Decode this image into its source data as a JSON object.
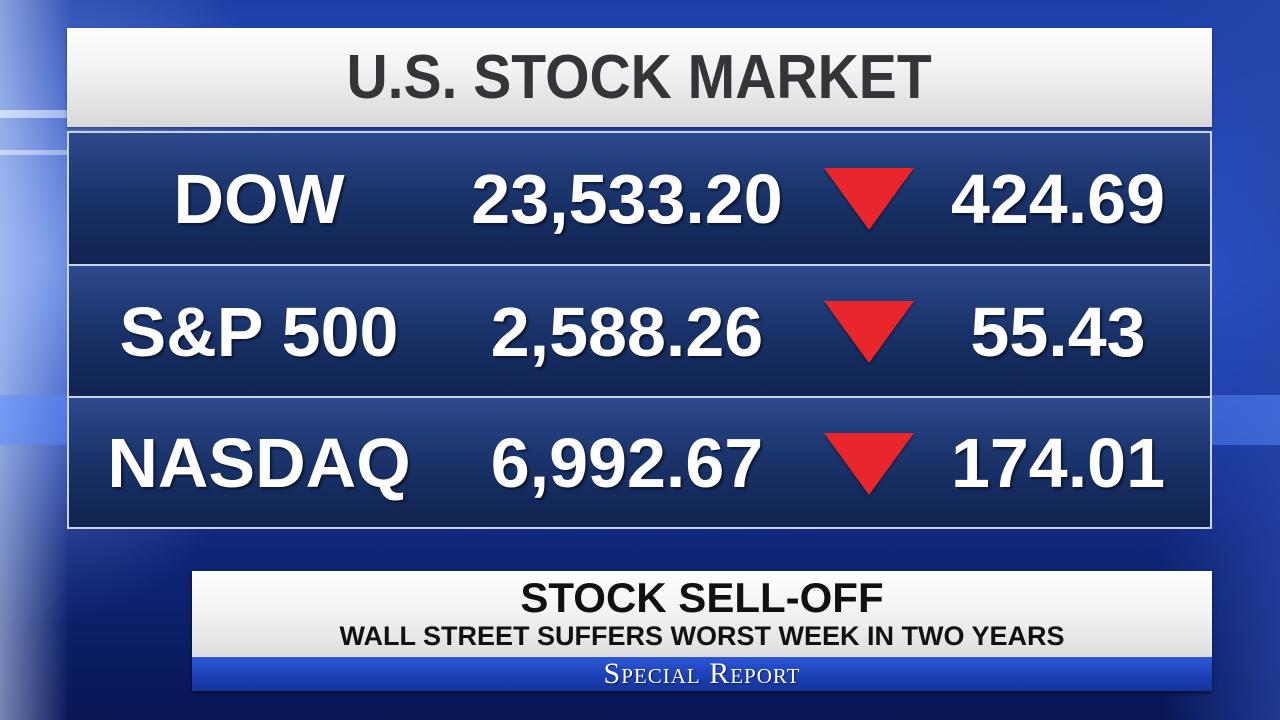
{
  "board": {
    "title": "U.S. STOCK MARKET",
    "rows": [
      {
        "name": "DOW",
        "value": "23,533.20",
        "direction": "down",
        "change": "424.69"
      },
      {
        "name": "S&P 500",
        "value": "2,588.26",
        "direction": "down",
        "change": "55.43"
      },
      {
        "name": "NASDAQ",
        "value": "6,992.67",
        "direction": "down",
        "change": "174.01"
      }
    ],
    "down_arrow_icon": "red-down-triangle-icon",
    "colors": {
      "down_arrow": "#e8262b",
      "row_background": "#1c366f",
      "title_background": "#f1f1f1",
      "title_text": "#333538"
    }
  },
  "lower_third": {
    "headline": "STOCK SELL-OFF",
    "subheadline": "WALL STREET SUFFERS WORST WEEK IN TWO YEARS",
    "show_name": "Special Report",
    "colors": {
      "bar": "#1b3fb4"
    }
  }
}
